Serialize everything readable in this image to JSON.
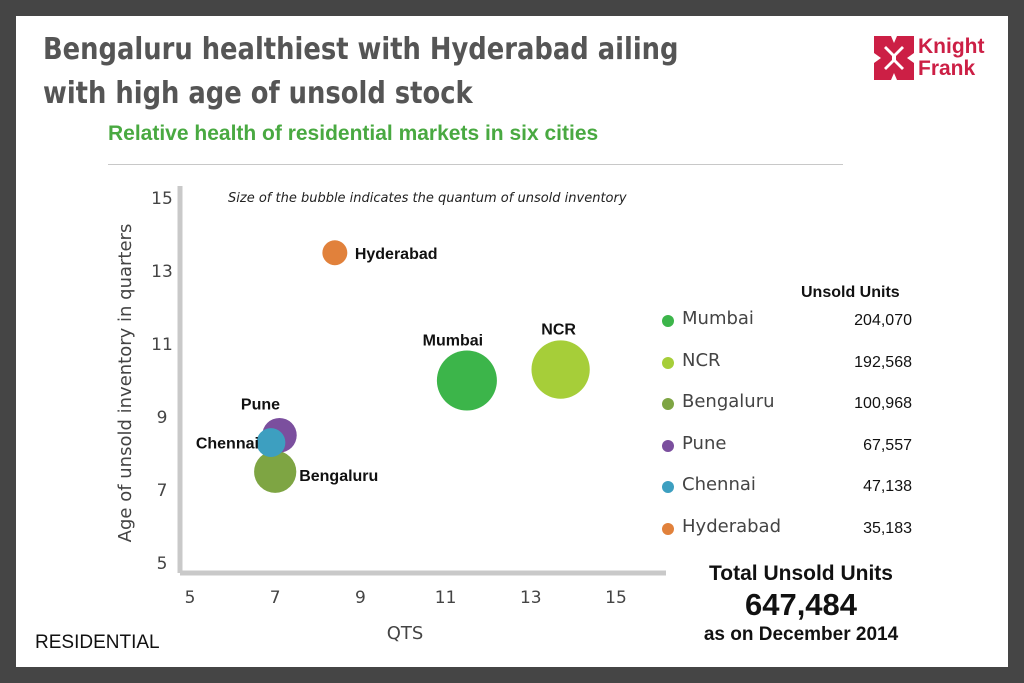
{
  "slide": {
    "title": "Bengaluru healthiest with Hyderabad ailing with high age of unsold stock",
    "subtitle": "Relative health of residential markets in six cities",
    "footer": "RESIDENTIAL",
    "logo": {
      "line1": "Knight",
      "line2": "Frank",
      "color": "#cc1f45"
    }
  },
  "legend": {
    "header": "Unsold Units",
    "total_label": "Total Unsold Units",
    "total_value": "647,484",
    "as_of": "as on December 2014"
  },
  "chart_data": {
    "type": "scatter",
    "variant": "bubble",
    "title": "Relative health of residential markets in six cities",
    "annotation": "Size of the bubble indicates the quantum of unsold inventory",
    "xlabel": "QTS",
    "ylabel": "Age of unsold inventory in quarters",
    "xlim": [
      5,
      15
    ],
    "ylim": [
      5,
      15
    ],
    "x_ticks": [
      5,
      7,
      9,
      11,
      13,
      15
    ],
    "y_ticks": [
      5,
      7,
      9,
      11,
      13,
      15
    ],
    "grid": false,
    "legend_position": "right",
    "series": [
      {
        "name": "Mumbai",
        "x": 11.5,
        "y": 10.0,
        "size": 204070,
        "size_label": "204,070",
        "color": "#3cb54a"
      },
      {
        "name": "NCR",
        "x": 13.7,
        "y": 10.3,
        "size": 192568,
        "size_label": "192,568",
        "color": "#a6ce39"
      },
      {
        "name": "Bengaluru",
        "x": 7.0,
        "y": 7.5,
        "size": 100968,
        "size_label": "100,968",
        "color": "#7ea543"
      },
      {
        "name": "Pune",
        "x": 7.1,
        "y": 8.5,
        "size": 67557,
        "size_label": "67,557",
        "color": "#7b4f9e"
      },
      {
        "name": "Chennai",
        "x": 6.9,
        "y": 8.3,
        "size": 47138,
        "size_label": "47,138",
        "color": "#3d9fc0"
      },
      {
        "name": "Hyderabad",
        "x": 8.4,
        "y": 13.5,
        "size": 35183,
        "size_label": "35,183",
        "color": "#e1813b"
      }
    ]
  }
}
